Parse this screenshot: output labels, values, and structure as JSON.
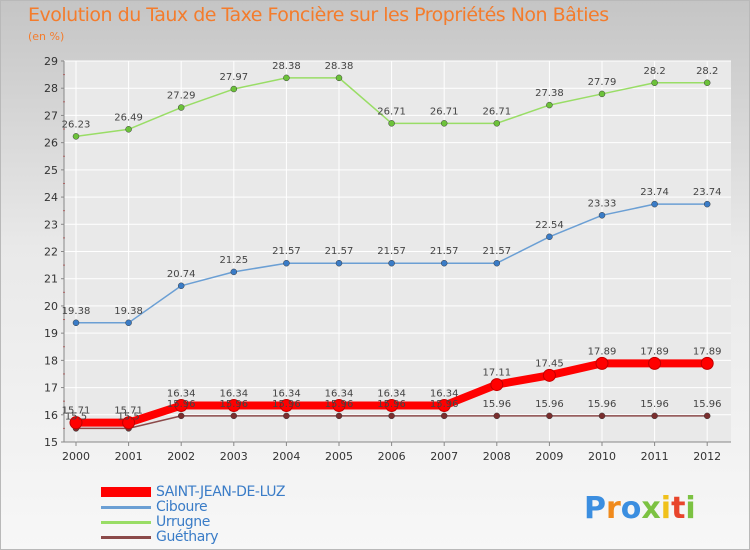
{
  "header": {
    "title": "Evolution du Taux de Taxe Foncière sur les Propriétés Non Bâties",
    "unit": "(en %)"
  },
  "colors": {
    "title": "#f47c2c",
    "grid": "#ffffff",
    "axis": "#999999"
  },
  "logo": {
    "letters": [
      {
        "char": "P",
        "color": "#3b8ee0"
      },
      {
        "char": "r",
        "color": "#f08a1c"
      },
      {
        "char": "o",
        "color": "#3b8ee0"
      },
      {
        "char": "x",
        "color": "#7cc242"
      },
      {
        "char": "i",
        "color": "#f0c11c"
      },
      {
        "char": "t",
        "color": "#e8452c"
      },
      {
        "char": "i",
        "color": "#7cc242"
      }
    ]
  },
  "chart_data": {
    "type": "line",
    "title": "Evolution du Taux de Taxe Foncière sur les Propriétés Non Bâties",
    "ylabel": "(en %)",
    "xlabel": "",
    "x": [
      "2000",
      "2001",
      "2002",
      "2003",
      "2004",
      "2005",
      "2006",
      "2007",
      "2008",
      "2009",
      "2010",
      "2011",
      "2012"
    ],
    "ylim": [
      15,
      29
    ],
    "yticks": [
      15,
      16,
      17,
      18,
      19,
      20,
      21,
      22,
      23,
      24,
      25,
      26,
      27,
      28,
      29
    ],
    "grid": true,
    "legend_position": "bottom-left",
    "series": [
      {
        "name": "SAINT-JEAN-DE-LUZ",
        "color": "#ff0000",
        "marker": "#c00000",
        "width": 8,
        "values": [
          15.71,
          15.71,
          16.34,
          16.34,
          16.34,
          16.34,
          16.34,
          16.34,
          17.11,
          17.45,
          17.89,
          17.89,
          17.89
        ],
        "labels": [
          "15.71",
          "15.71",
          "16.34",
          "16.34",
          "16.34",
          "16.34",
          "16.34",
          "16.34",
          "17.11",
          "17.45",
          "17.89",
          "17.89",
          "17.89"
        ]
      },
      {
        "name": "Ciboure",
        "color": "#6b9fd4",
        "marker": "#3a7cc7",
        "width": 1.5,
        "values": [
          19.38,
          19.38,
          20.74,
          21.25,
          21.57,
          21.57,
          21.57,
          21.57,
          21.57,
          22.54,
          23.33,
          23.74,
          23.74
        ],
        "labels": [
          "19.38",
          "19.38",
          "20.74",
          "21.25",
          "21.57",
          "21.57",
          "21.57",
          "21.57",
          "21.57",
          "22.54",
          "23.33",
          "23.74",
          "23.74"
        ]
      },
      {
        "name": "Urrugne",
        "color": "#99dd66",
        "marker": "#6cc23a",
        "width": 1.5,
        "values": [
          26.23,
          26.49,
          27.29,
          27.97,
          28.38,
          28.38,
          26.71,
          26.71,
          26.71,
          27.38,
          27.79,
          28.2,
          28.2
        ],
        "labels": [
          "26.23",
          "26.49",
          "27.29",
          "27.97",
          "28.38",
          "28.38",
          "26.71",
          "26.71",
          "26.71",
          "27.38",
          "27.79",
          "28.2",
          "28.2"
        ]
      },
      {
        "name": "Guéthary",
        "color": "#8b4a4a",
        "marker": "#7a2e2e",
        "width": 1.5,
        "values": [
          15.5,
          15.5,
          15.96,
          15.96,
          15.96,
          15.96,
          15.96,
          15.96,
          15.96,
          15.96,
          15.96,
          15.96,
          15.96
        ],
        "labels": [
          "15.5",
          "15.5",
          "15.96",
          "15.96",
          "15.96",
          "15.96",
          "15.96",
          "15.96",
          "15.96",
          "15.96",
          "15.96",
          "15.96",
          "15.96"
        ]
      }
    ]
  }
}
